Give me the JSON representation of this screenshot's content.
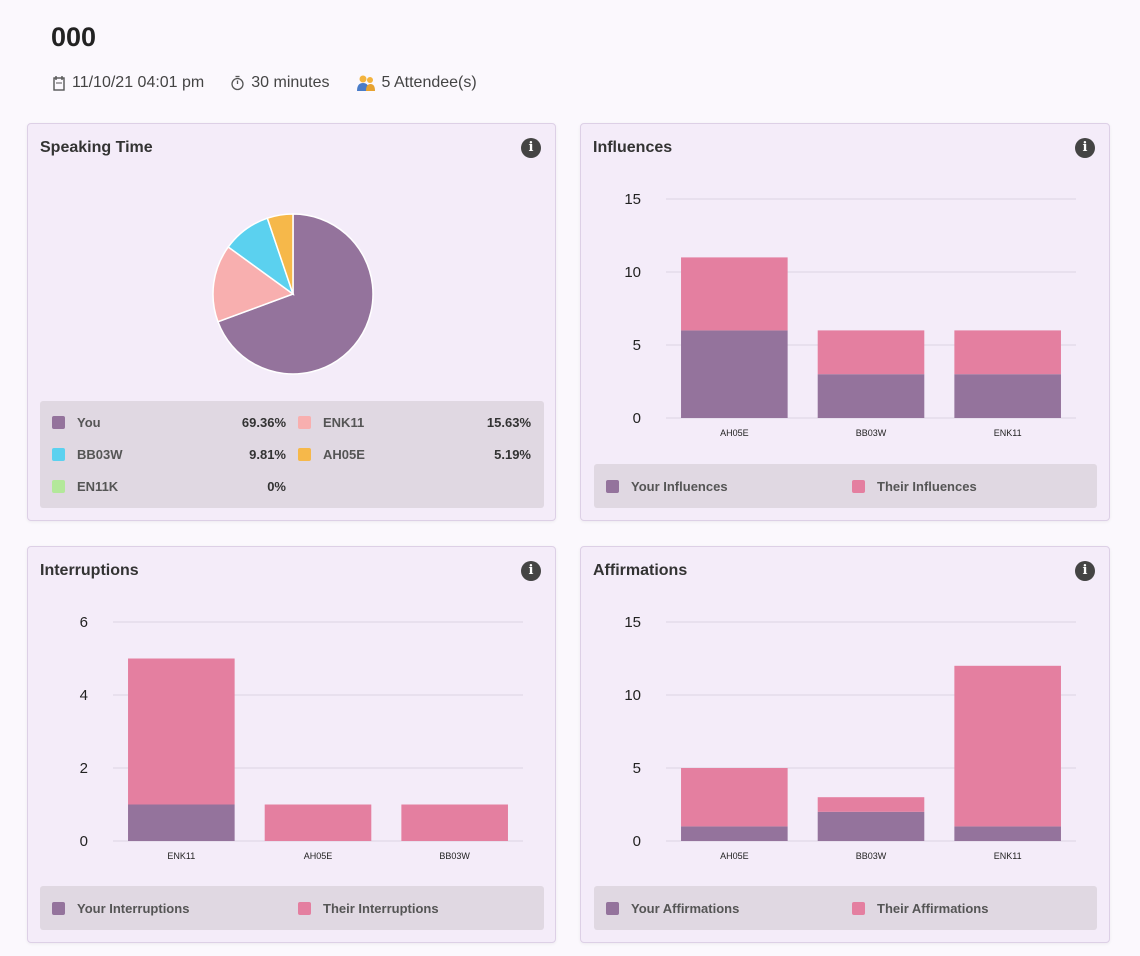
{
  "meeting": {
    "title": "000",
    "datetime": "11/10/21 04:01 pm",
    "duration": "30 minutes",
    "attendees": "5 Attendee(s)"
  },
  "colors": {
    "you": "#94739c",
    "their": "#e47fa0",
    "BB03W": "#5bd1ef",
    "ENK11": "#f8afaf",
    "AH05E": "#f6b84a",
    "EN11K": "#b3e89a"
  },
  "speaking_time": {
    "title": "Speaking Time",
    "info_icon": "info-icon",
    "legend": [
      {
        "label": "You",
        "value": "69.36%",
        "color": "#94739c"
      },
      {
        "label": "ENK11",
        "value": "15.63%",
        "color": "#f8afaf"
      },
      {
        "label": "BB03W",
        "value": "9.81%",
        "color": "#5bd1ef"
      },
      {
        "label": "AH05E",
        "value": "5.19%",
        "color": "#f6b84a"
      },
      {
        "label": "EN11K",
        "value": "0%",
        "color": "#b3e89a"
      }
    ]
  },
  "influences": {
    "title": "Influences",
    "legend_your": "Your Influences",
    "legend_their": "Their Influences"
  },
  "interruptions": {
    "title": "Interruptions",
    "legend_your": "Your Interruptions",
    "legend_their": "Their Interruptions"
  },
  "affirmations": {
    "title": "Affirmations",
    "legend_your": "Your Affirmations",
    "legend_their": "Their Affirmations"
  },
  "chart_data": [
    {
      "id": "speaking",
      "type": "pie",
      "title": "Speaking Time",
      "categories": [
        "You",
        "ENK11",
        "BB03W",
        "AH05E",
        "EN11K"
      ],
      "values": [
        69.36,
        15.63,
        9.81,
        5.19,
        0
      ]
    },
    {
      "id": "influences",
      "type": "bar",
      "title": "Influences",
      "categories": [
        "AH05E",
        "BB03W",
        "ENK11"
      ],
      "series": [
        {
          "name": "Your Influences",
          "values": [
            6,
            3,
            3
          ]
        },
        {
          "name": "Their Influences",
          "values": [
            5,
            3,
            3
          ]
        }
      ],
      "ylim": [
        0,
        15
      ],
      "yticks": [
        0,
        5,
        10,
        15
      ]
    },
    {
      "id": "interruptions",
      "type": "bar",
      "title": "Interruptions",
      "categories": [
        "ENK11",
        "AH05E",
        "BB03W"
      ],
      "series": [
        {
          "name": "Your Interruptions",
          "values": [
            1,
            0,
            0
          ]
        },
        {
          "name": "Their Interruptions",
          "values": [
            4,
            1,
            1
          ]
        }
      ],
      "ylim": [
        0,
        6
      ],
      "yticks": [
        0,
        2,
        4,
        6
      ]
    },
    {
      "id": "affirmations",
      "type": "bar",
      "title": "Affirmations",
      "categories": [
        "AH05E",
        "BB03W",
        "ENK11"
      ],
      "series": [
        {
          "name": "Your Affirmations",
          "values": [
            1,
            2,
            1
          ]
        },
        {
          "name": "Their Affirmations",
          "values": [
            4,
            1,
            11
          ]
        }
      ],
      "ylim": [
        0,
        15
      ],
      "yticks": [
        0,
        5,
        10,
        15
      ]
    }
  ]
}
